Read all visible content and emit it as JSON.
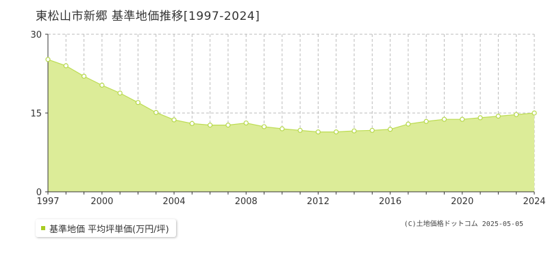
{
  "title": "東松山市新郷 基準地価推移[1997-2024]",
  "legend_label": "基準地価 平均坪単価(万円/坪)",
  "credit": "(C)土地価格ドットコム 2025-05-05",
  "colors": {
    "area_fill": "#dcec98",
    "line": "#bcdc52",
    "point_fill": "#ffffff",
    "point_stroke": "#b6d84a",
    "legend_swatch": "#a8cc22",
    "grid": "#bbbbbb"
  },
  "chart_data": {
    "type": "area",
    "x": [
      1997,
      1998,
      1999,
      2000,
      2001,
      2002,
      2003,
      2004,
      2005,
      2006,
      2007,
      2008,
      2009,
      2010,
      2011,
      2012,
      2013,
      2014,
      2015,
      2016,
      2017,
      2018,
      2019,
      2020,
      2021,
      2022,
      2023,
      2024
    ],
    "series": [
      {
        "name": "基準地価 平均坪単価(万円/坪)",
        "values": [
          25.2,
          24.0,
          22.0,
          20.3,
          18.8,
          17.0,
          15.1,
          13.7,
          13.0,
          12.7,
          12.7,
          13.1,
          12.4,
          12.0,
          11.7,
          11.4,
          11.4,
          11.6,
          11.7,
          11.9,
          12.9,
          13.4,
          13.8,
          13.8,
          14.1,
          14.4,
          14.7,
          15.0
        ]
      }
    ],
    "xlim": [
      1997,
      2024
    ],
    "ylim": [
      0,
      30
    ],
    "x_ticks": [
      "1997",
      "2000",
      "2004",
      "2008",
      "2012",
      "2016",
      "2020",
      "2024"
    ],
    "y_ticks": [
      "0",
      "15",
      "30"
    ],
    "grid": true
  }
}
